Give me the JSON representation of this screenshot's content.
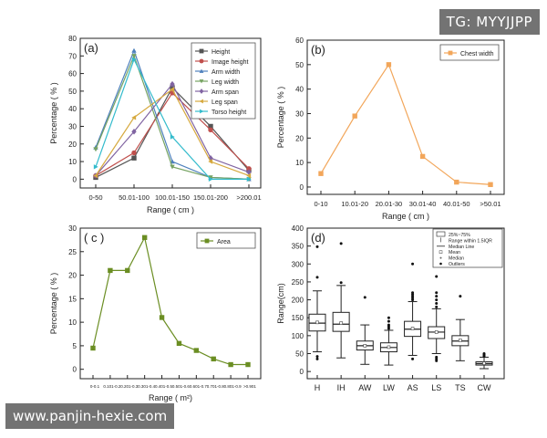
{
  "watermarks": {
    "top": "TG: MYYJJPP",
    "bottom": "www.panjin-hexie.com"
  },
  "chart_data": [
    {
      "panel": "(a)",
      "type": "line",
      "categories": [
        "0-50",
        "50.01-100",
        "100.01-150",
        "150.01-200",
        ">200.01"
      ],
      "xlabel": "Range ( cm )",
      "ylabel": "Percentage ( % )",
      "ylim": [
        -5,
        80
      ],
      "yticks": [
        0,
        10,
        20,
        30,
        40,
        50,
        60,
        70,
        80
      ],
      "legend_position": "top-right",
      "series": [
        {
          "name": "Height",
          "color": "#555555",
          "marker": "square",
          "values": [
            1,
            12,
            52,
            30,
            5
          ]
        },
        {
          "name": "Image height",
          "color": "#c0504d",
          "marker": "circle",
          "values": [
            2,
            15,
            49,
            28,
            6
          ]
        },
        {
          "name": "Arm width",
          "color": "#4f81bd",
          "marker": "triangle",
          "values": [
            18,
            73,
            10,
            1,
            0
          ]
        },
        {
          "name": "Leg width",
          "color": "#76a362",
          "marker": "triangle-down",
          "values": [
            17,
            70,
            7,
            1,
            0
          ]
        },
        {
          "name": "Arm span",
          "color": "#8064a2",
          "marker": "diamond",
          "values": [
            2,
            27,
            54,
            12,
            4
          ]
        },
        {
          "name": "Leg span",
          "color": "#d6a93e",
          "marker": "triangle-left",
          "values": [
            2,
            35,
            51,
            10,
            2
          ]
        },
        {
          "name": "Torso height",
          "color": "#33bbcc",
          "marker": "triangle-right",
          "values": [
            7,
            68,
            24,
            0,
            0
          ]
        }
      ]
    },
    {
      "panel": "(b)",
      "type": "line",
      "categories": [
        "0-10",
        "10.01-20",
        "20.01-30",
        "30.01-40",
        "40.01-50",
        ">50.01"
      ],
      "xlabel": "Range ( cm )",
      "ylabel": "Percentage ( % )",
      "ylim": [
        -3,
        60
      ],
      "yticks": [
        0,
        10,
        20,
        30,
        40,
        50,
        60
      ],
      "legend_position": "top-right",
      "series": [
        {
          "name": "Chest width",
          "color": "#f2a65a",
          "marker": "square",
          "values": [
            5.5,
            29,
            50,
            12.5,
            2,
            1
          ]
        }
      ]
    },
    {
      "panel": "( c )",
      "type": "line",
      "categories": [
        "0-0.1",
        "0.101-0.2",
        "0.201-0.3",
        "0.301-0.4",
        "0.401-0.5",
        "0.501-0.6",
        "0.601-0.7",
        "0.701-0.8",
        "0.801-0.9",
        ">0.901"
      ],
      "xlabel": "Range ( m²)",
      "ylabel": "Percentage ( % )",
      "ylim": [
        -2,
        30
      ],
      "yticks": [
        0,
        5,
        10,
        15,
        20,
        25,
        30
      ],
      "legend_position": "top-right",
      "series": [
        {
          "name": "Area",
          "color": "#6b8e23",
          "marker": "square",
          "values": [
            4.5,
            21,
            21,
            28,
            11,
            5.5,
            4,
            2.2,
            1,
            1
          ]
        }
      ]
    },
    {
      "panel": "(d)",
      "type": "box",
      "categories": [
        "H",
        "IH",
        "AW",
        "LW",
        "AS",
        "LS",
        "TS",
        "CW"
      ],
      "ylabel": "Range(cm)",
      "ylim": [
        -20,
        400
      ],
      "yticks": [
        0,
        50,
        100,
        150,
        200,
        250,
        300,
        350,
        400
      ],
      "legend": [
        "25%~75%",
        "Range within 1.5IQR",
        "Median Line",
        "Mean",
        "Median",
        "Outliers"
      ],
      "legend_position": "top-right",
      "boxes": [
        {
          "q1": 113,
          "median": 135,
          "q3": 160,
          "whisker_low": 55,
          "whisker_high": 225,
          "mean": 137,
          "outliers": [
            35,
            42,
            263,
            348
          ]
        },
        {
          "q1": 112,
          "median": 132,
          "q3": 165,
          "whisker_low": 38,
          "whisker_high": 240,
          "mean": 135,
          "outliers": [
            248,
            357
          ]
        },
        {
          "q1": 60,
          "median": 72,
          "q3": 85,
          "whisker_low": 20,
          "whisker_high": 130,
          "mean": 72,
          "outliers": [
            207
          ]
        },
        {
          "q1": 55,
          "median": 67,
          "q3": 80,
          "whisker_low": 18,
          "whisker_high": 115,
          "mean": 68,
          "outliers": [
            120,
            125,
            130,
            140,
            150
          ]
        },
        {
          "q1": 98,
          "median": 118,
          "q3": 140,
          "whisker_low": 45,
          "whisker_high": 195,
          "mean": 120,
          "outliers": [
            35,
            200,
            205,
            210,
            215,
            220,
            300
          ]
        },
        {
          "q1": 92,
          "median": 110,
          "q3": 125,
          "whisker_low": 50,
          "whisker_high": 175,
          "mean": 110,
          "outliers": [
            30,
            35,
            40,
            180,
            190,
            200,
            210,
            220,
            265
          ]
        },
        {
          "q1": 72,
          "median": 85,
          "q3": 100,
          "whisker_low": 30,
          "whisker_high": 145,
          "mean": 87,
          "outliers": [
            210
          ]
        },
        {
          "q1": 18,
          "median": 22,
          "q3": 27,
          "whisker_low": 8,
          "whisker_high": 40,
          "mean": 23,
          "outliers": [
            42,
            45,
            48,
            50
          ]
        }
      ]
    }
  ]
}
